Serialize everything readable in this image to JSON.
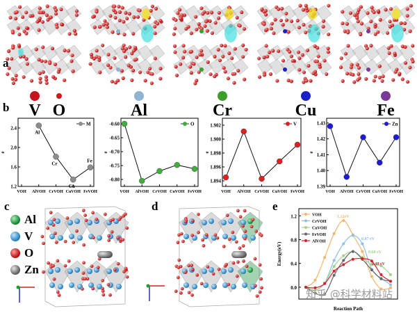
{
  "panel_labels": {
    "a": "a",
    "b": "b",
    "c": "c",
    "d": "d",
    "e": "e"
  },
  "element_legend": [
    {
      "symbol": "V",
      "color": "#c8141c"
    },
    {
      "symbol": "O",
      "color": "#d01818"
    },
    {
      "symbol": "Al",
      "color": "#8fb4d2"
    },
    {
      "symbol": "Cr",
      "color": "#3aa02a"
    },
    {
      "symbol": "Cu",
      "color": "#1a22c8"
    },
    {
      "symbol": "Fe",
      "color": "#7b3a9a"
    }
  ],
  "structure_legend": [
    {
      "symbol": "Al",
      "color": "#1ea048"
    },
    {
      "symbol": "V",
      "color": "#3a9ad8"
    },
    {
      "symbol": "O",
      "color": "#d01818"
    },
    {
      "symbol": "Zn",
      "color": "#8a8a8a"
    }
  ],
  "watermark": "知乎 @科学材料站",
  "chart_data": [
    {
      "type": "line",
      "panel": "b",
      "ylabel": "e",
      "categories": [
        "VOH",
        "AlVOH",
        "CrVOH",
        "CuVOH",
        "FeVOH"
      ],
      "series": [
        {
          "name": "M",
          "color": "#8c8c8c",
          "values": [
            null,
            2.45,
            1.81,
            1.34,
            1.59
          ]
        }
      ],
      "point_labels": [
        null,
        "Al",
        "Cr",
        "Cu",
        "Fe"
      ],
      "ylim": [
        1.2,
        2.6
      ],
      "yticks": [
        "1.2",
        "1.6",
        "2.0",
        "2.4"
      ],
      "legend": "top-right"
    },
    {
      "type": "line",
      "panel": "b",
      "ylabel": "e",
      "categories": [
        "VOH",
        "AlVOH",
        "CrVOH",
        "CuVOH",
        "FeVOH"
      ],
      "series": [
        {
          "name": "O",
          "color": "#3fae3a",
          "values": [
            -0.6,
            -0.805,
            -0.77,
            -0.748,
            -0.762
          ]
        }
      ],
      "ylim": [
        -0.825,
        -0.58
      ],
      "yticks": [
        "-0.80",
        "-0.75",
        "-0.70",
        "-0.65",
        "-0.60"
      ],
      "legend": "top-right"
    },
    {
      "type": "line",
      "panel": "b",
      "ylabel": "e",
      "categories": [
        "VOH",
        "AlVOH",
        "CrVOH",
        "CuVOH",
        "FeVOH"
      ],
      "series": [
        {
          "name": "V",
          "color": "#e02020",
          "values": [
            1.8945,
            1.9011,
            1.8943,
            1.8968,
            1.8992
          ]
        }
      ],
      "ylim": [
        1.8932,
        1.903
      ],
      "yticks": [
        "1.894",
        "1.896",
        "1.898",
        "1.900",
        "1.902"
      ],
      "legend": "top-right"
    },
    {
      "type": "line",
      "panel": "b",
      "ylabel": "e",
      "categories": [
        "VOH",
        "AlVOH",
        "CrVOH",
        "CuVOH",
        "FeVOH"
      ],
      "series": [
        {
          "name": "Zn",
          "color": "#1c1cd8",
          "values": [
            1.428,
            1.396,
            1.421,
            1.405,
            1.421
          ]
        }
      ],
      "ylim": [
        1.39,
        1.433
      ],
      "yticks": [
        "1.39",
        "1.40",
        "1.41",
        "1.42",
        "1.43"
      ],
      "legend": "top-right"
    },
    {
      "type": "line",
      "panel": "e",
      "xlabel": "Reaction Path",
      "ylabel": "Energy(eV)",
      "ylim": [
        -0.2,
        1.32
      ],
      "yticks": [
        "0.0",
        "0.4",
        "0.8",
        "1.2"
      ],
      "legend": "top-left",
      "x": [
        0,
        1,
        2,
        3,
        4,
        5,
        6,
        7,
        8,
        9
      ],
      "series": [
        {
          "name": "VOH",
          "color": "#f5b46a",
          "values": [
            0,
            0.12,
            0.5,
            0.9,
            1.12,
            0.88,
            0.6,
            0.18,
            -0.03,
            -0.01
          ]
        },
        {
          "name": "CrVOH",
          "color": "#8ec0e4",
          "values": [
            0,
            -0.05,
            0.07,
            0.45,
            0.73,
            0.87,
            0.73,
            0.3,
            0.15,
            0.04
          ]
        },
        {
          "name": "CuVOH",
          "color": "#9ed48a",
          "values": [
            0,
            -0.05,
            0.07,
            0.35,
            0.53,
            0.6,
            0.5,
            0.38,
            0.36,
            0.21
          ]
        },
        {
          "name": "FeVOH",
          "color": "#666666",
          "values": [
            0,
            -0.1,
            -0.12,
            0.2,
            0.45,
            0.6,
            0.47,
            0.29,
            0.14,
            0.1
          ]
        },
        {
          "name": "AlVOH",
          "color": "#d4202c",
          "values": [
            0,
            -0.01,
            0.06,
            0.27,
            0.38,
            0.47,
            0.48,
            0.44,
            0.21,
            0.1
          ]
        }
      ],
      "annotations": [
        {
          "text": "1.12eV",
          "color": "#f5b46a"
        },
        {
          "text": "0.87 eV",
          "color": "#8ec0e4"
        },
        {
          "text": "0.60 eV",
          "color": "#9ed48a"
        },
        {
          "text": "0.48 eV",
          "color": "#d4202c"
        }
      ]
    }
  ]
}
